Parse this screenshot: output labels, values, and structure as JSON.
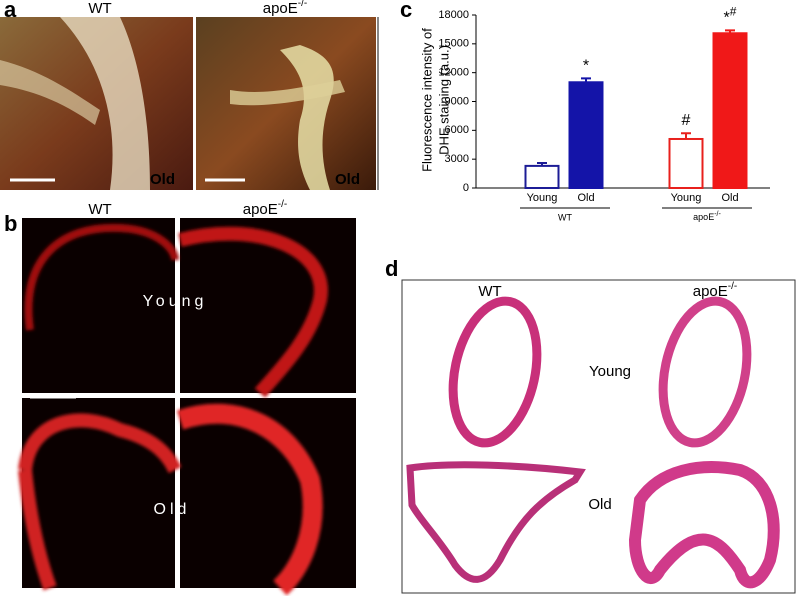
{
  "panels": {
    "a": {
      "label": "a",
      "wt": "WT",
      "apoe": {
        "base": "apoE",
        "sup": "-/-"
      },
      "old_wt": "Old",
      "old_apoe": "Old"
    },
    "b": {
      "label": "b",
      "wt": "WT",
      "apoe": {
        "base": "apoE",
        "sup": "-/-"
      },
      "young": "Young",
      "old": "Old"
    },
    "c": {
      "label": "c"
    },
    "d": {
      "label": "d",
      "wt": "WT",
      "apoe": {
        "base": "apoE",
        "sup": "-/-"
      },
      "young": "Young",
      "old": "Old"
    }
  },
  "chart_data": {
    "type": "bar",
    "ylabel": [
      "Fluorescence intensity of",
      "DHE staining (a.u.)"
    ],
    "categories": [
      "Young",
      "Old",
      "Young",
      "Old"
    ],
    "groups": [
      "WT",
      {
        "base": "apoE",
        "sup": "-/-"
      }
    ],
    "values": [
      2300,
      11000,
      5100,
      16100
    ],
    "errors": [
      300,
      400,
      600,
      300
    ],
    "colors": [
      "#1c1c96",
      "#1414a8",
      "#e8201c",
      "#f01818"
    ],
    "filled": [
      false,
      true,
      false,
      true
    ],
    "marks": [
      null,
      [
        "*"
      ],
      [
        "#"
      ],
      [
        "*",
        "#"
      ]
    ],
    "ylim": [
      0,
      18000
    ],
    "yticks": [
      0,
      3000,
      6000,
      9000,
      12000,
      15000,
      18000
    ]
  }
}
